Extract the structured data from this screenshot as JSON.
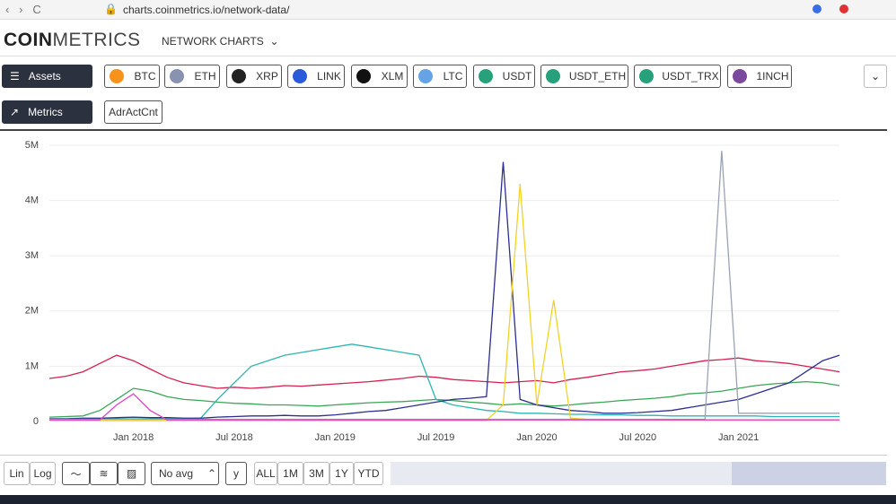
{
  "browser": {
    "url": "charts.coinmetrics.io/network-data/"
  },
  "header": {
    "logo_bold": "COIN",
    "logo_light": "METRICS",
    "nav": "NETWORK CHARTS"
  },
  "assets": {
    "label": "Assets",
    "items": [
      "BTC",
      "ETH",
      "XRP",
      "LINK",
      "XLM",
      "LTC",
      "USDT",
      "USDT_ETH",
      "USDT_TRX",
      "1INCH"
    ]
  },
  "metrics": {
    "label": "Metrics",
    "items": [
      "AdrActCnt"
    ]
  },
  "controls": {
    "scale": [
      "Lin",
      "Log"
    ],
    "avg": "No avg",
    "ranges": [
      "ALL",
      "1M",
      "3M",
      "1Y",
      "YTD"
    ]
  },
  "chart_data": {
    "type": "line",
    "x": [
      "Aug 2017",
      "Sep 2017",
      "Oct 2017",
      "Nov 2017",
      "Dec 2017",
      "Jan 2018",
      "Feb 2018",
      "Mar 2018",
      "Apr 2018",
      "May 2018",
      "Jun 2018",
      "Jul 2018",
      "Aug 2018",
      "Sep 2018",
      "Oct 2018",
      "Nov 2018",
      "Dec 2018",
      "Jan 2019",
      "Feb 2019",
      "Mar 2019",
      "Apr 2019",
      "May 2019",
      "Jun 2019",
      "Jul 2019",
      "Aug 2019",
      "Sep 2019",
      "Oct 2019",
      "Nov 2019",
      "Dec 2019",
      "Jan 2020",
      "Feb 2020",
      "Mar 2020",
      "Apr 2020",
      "May 2020",
      "Jun 2020",
      "Jul 2020",
      "Aug 2020",
      "Sep 2020",
      "Oct 2020",
      "Nov 2020",
      "Dec 2020",
      "Jan 2021",
      "Feb 2021",
      "Mar 2021",
      "Apr 2021",
      "May 2021",
      "Jun 2021",
      "Jul 2021"
    ],
    "xticks": [
      "Jan 2018",
      "Jul 2018",
      "Jan 2019",
      "Jul 2019",
      "Jan 2020",
      "Jul 2020",
      "Jan 2021"
    ],
    "ylim": [
      0,
      5200000
    ],
    "yticks": [
      {
        "value": 0,
        "label": "0"
      },
      {
        "value": 1000000,
        "label": "1M"
      },
      {
        "value": 2000000,
        "label": "2M"
      },
      {
        "value": 3000000,
        "label": "3M"
      },
      {
        "value": 4000000,
        "label": "4M"
      },
      {
        "value": 5000000,
        "label": "5M"
      }
    ],
    "grid": true,
    "series": [
      {
        "color": "#d6204e",
        "values": [
          780000,
          820000,
          900000,
          1050000,
          1200000,
          1100000,
          950000,
          800000,
          700000,
          650000,
          600000,
          620000,
          600000,
          620000,
          650000,
          640000,
          660000,
          680000,
          700000,
          720000,
          750000,
          780000,
          820000,
          800000,
          760000,
          740000,
          720000,
          700000,
          720000,
          740000,
          700000,
          760000,
          800000,
          850000,
          900000,
          920000,
          950000,
          1000000,
          1050000,
          1100000,
          1120000,
          1150000,
          1100000,
          1080000,
          1050000,
          1000000,
          950000,
          900000
        ]
      },
      {
        "color": "#3aa657",
        "values": [
          80000,
          90000,
          100000,
          200000,
          400000,
          600000,
          550000,
          450000,
          400000,
          380000,
          350000,
          330000,
          320000,
          300000,
          300000,
          290000,
          280000,
          300000,
          320000,
          340000,
          350000,
          360000,
          380000,
          400000,
          380000,
          350000,
          330000,
          300000,
          320000,
          300000,
          280000,
          300000,
          330000,
          350000,
          380000,
          400000,
          420000,
          450000,
          500000,
          520000,
          550000,
          600000,
          650000,
          680000,
          700000,
          720000,
          700000,
          650000
        ]
      },
      {
        "color": "#2bb5b0",
        "values": [
          30000,
          30000,
          40000,
          50000,
          60000,
          70000,
          60000,
          60000,
          50000,
          60000,
          400000,
          700000,
          1000000,
          1100000,
          1200000,
          1250000,
          1300000,
          1350000,
          1400000,
          1350000,
          1300000,
          1250000,
          1200000,
          400000,
          300000,
          250000,
          200000,
          180000,
          150000,
          150000,
          140000,
          130000,
          130000,
          120000,
          120000,
          110000,
          110000,
          100000,
          100000,
          100000,
          100000,
          100000,
          100000,
          90000,
          90000,
          90000,
          90000,
          90000
        ]
      },
      {
        "color": "#2c2f8f",
        "values": [
          50000,
          50000,
          60000,
          60000,
          70000,
          80000,
          70000,
          70000,
          60000,
          60000,
          80000,
          90000,
          100000,
          100000,
          110000,
          100000,
          100000,
          120000,
          150000,
          180000,
          200000,
          250000,
          300000,
          350000,
          400000,
          420000,
          450000,
          4700000,
          400000,
          300000,
          250000,
          200000,
          180000,
          150000,
          150000,
          160000,
          180000,
          200000,
          250000,
          300000,
          350000,
          400000,
          500000,
          600000,
          700000,
          900000,
          1100000,
          1200000
        ]
      },
      {
        "color": "#f2d227",
        "values": [
          20000,
          20000,
          20000,
          20000,
          20000,
          20000,
          20000,
          20000,
          20000,
          20000,
          20000,
          20000,
          20000,
          20000,
          20000,
          20000,
          20000,
          20000,
          20000,
          20000,
          20000,
          20000,
          20000,
          20000,
          20000,
          20000,
          20000,
          300000,
          4300000,
          300000,
          2200000,
          60000,
          40000,
          30000,
          30000,
          30000,
          30000,
          30000,
          30000,
          30000,
          30000,
          30000,
          30000,
          30000,
          30000,
          30000,
          30000,
          30000
        ]
      },
      {
        "color": "#9aa3b5",
        "values": [
          40000,
          40000,
          40000,
          40000,
          40000,
          40000,
          40000,
          40000,
          40000,
          40000,
          40000,
          40000,
          40000,
          40000,
          40000,
          40000,
          40000,
          40000,
          40000,
          40000,
          40000,
          40000,
          40000,
          40000,
          40000,
          40000,
          40000,
          40000,
          40000,
          40000,
          40000,
          40000,
          40000,
          40000,
          40000,
          40000,
          40000,
          40000,
          40000,
          40000,
          4900000,
          150000,
          150000,
          150000,
          150000,
          150000,
          150000,
          150000
        ]
      },
      {
        "color": "#e040c8",
        "values": [
          30000,
          30000,
          30000,
          30000,
          300000,
          500000,
          200000,
          30000,
          30000,
          30000,
          30000,
          30000,
          30000,
          30000,
          30000,
          30000,
          30000,
          30000,
          30000,
          30000,
          30000,
          30000,
          30000,
          30000,
          30000,
          30000,
          30000,
          30000,
          30000,
          30000,
          30000,
          30000,
          30000,
          30000,
          30000,
          30000,
          30000,
          30000,
          30000,
          30000,
          30000,
          30000,
          30000,
          30000,
          30000,
          30000,
          30000,
          30000
        ]
      }
    ]
  }
}
